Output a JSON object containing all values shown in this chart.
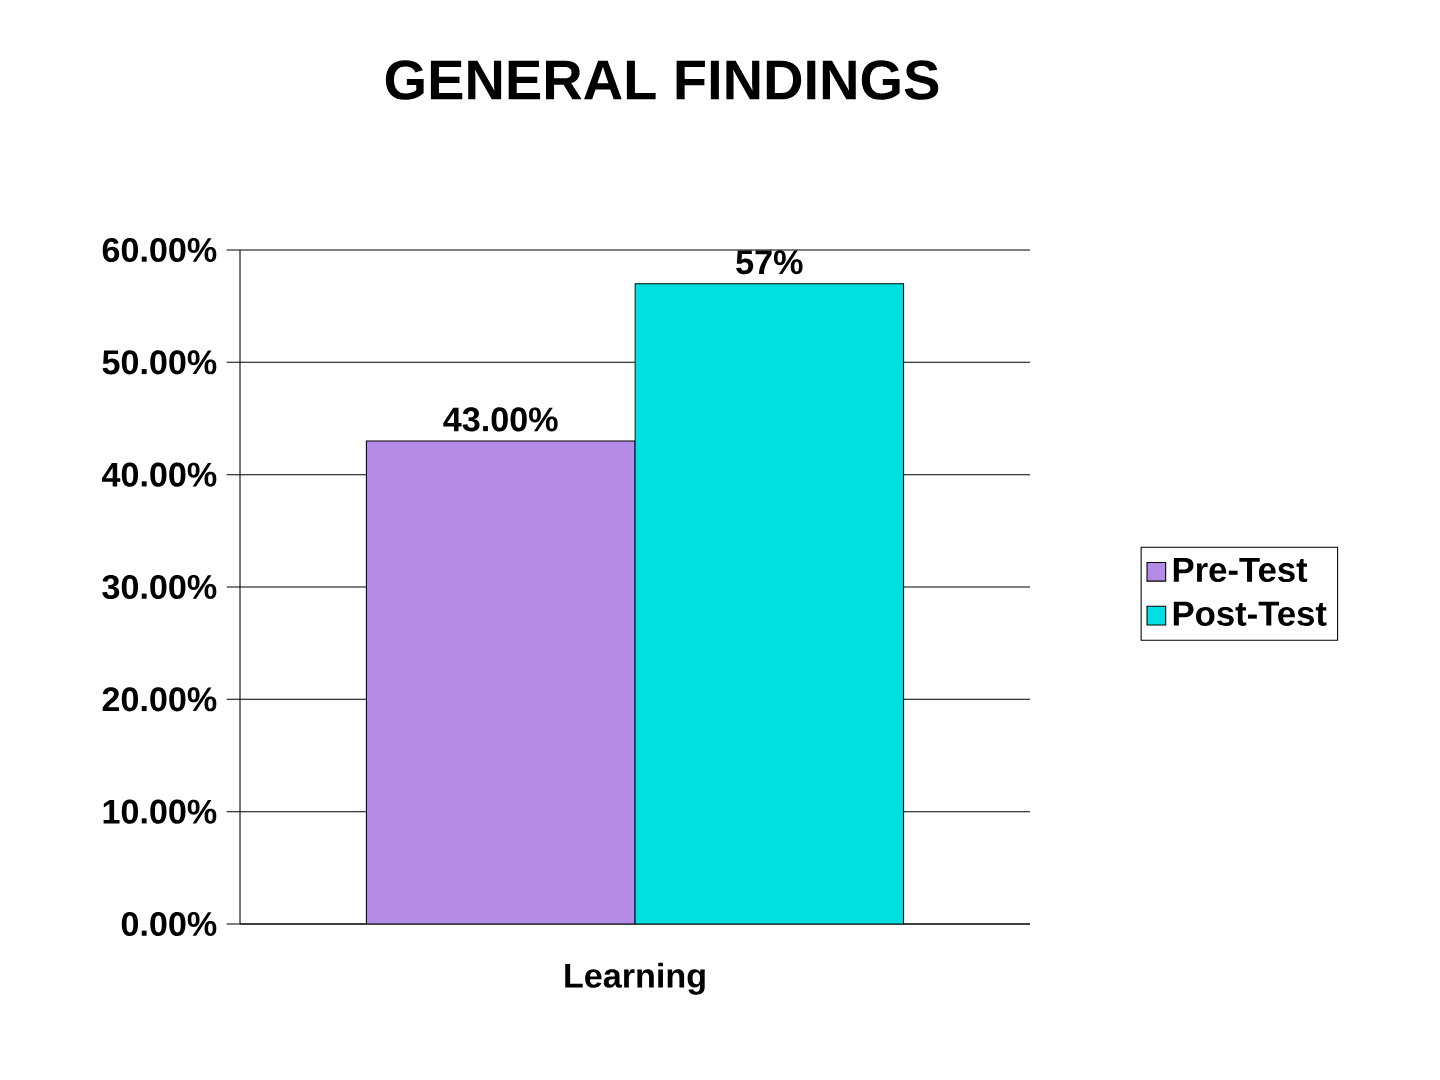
{
  "chart_data": {
    "type": "bar",
    "title": "GENERAL FINDINGS",
    "categories": [
      "Learning"
    ],
    "series": [
      {
        "name": "Pre-Test",
        "color": "#b48ce6",
        "values": [
          43
        ],
        "value_labels": [
          "43.00%"
        ]
      },
      {
        "name": "Post-Test",
        "color": "#00e0e0",
        "values": [
          57
        ],
        "value_labels": [
          "57%"
        ]
      }
    ],
    "ylim": [
      0,
      60
    ],
    "yticks": [
      {
        "value": 0,
        "label": "0.00%"
      },
      {
        "value": 10,
        "label": "10.00%"
      },
      {
        "value": 20,
        "label": "20.00%"
      },
      {
        "value": 30,
        "label": "30.00%"
      },
      {
        "value": 40,
        "label": "40.00%"
      },
      {
        "value": 50,
        "label": "50.00%"
      },
      {
        "value": 60,
        "label": "60.00%"
      }
    ],
    "grid": "y",
    "legend": "right"
  }
}
